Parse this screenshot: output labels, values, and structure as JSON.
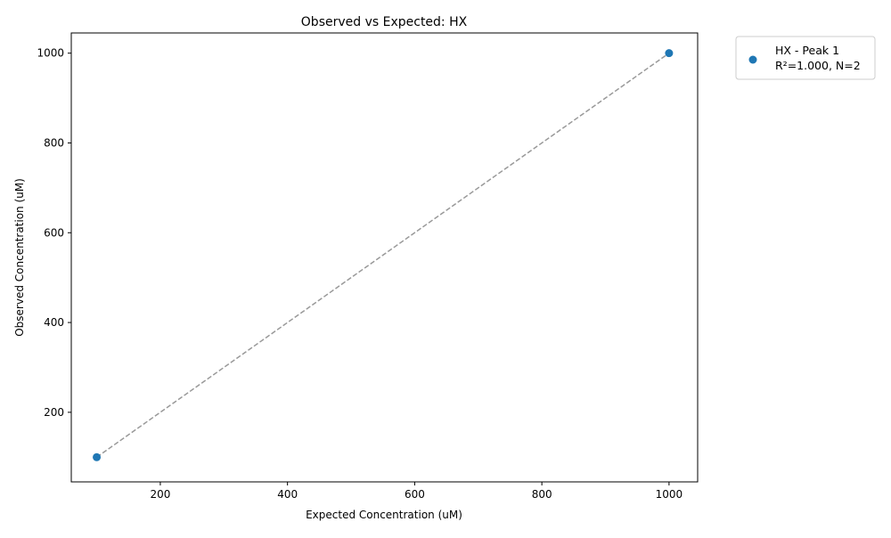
{
  "chart_data": {
    "type": "scatter",
    "title": "Observed vs Expected: HX",
    "xlabel": "Expected Concentration (uM)",
    "ylabel": "Observed Concentration (uM)",
    "xlim": [
      60,
      1045
    ],
    "ylim": [
      45,
      1045
    ],
    "xticks": [
      200,
      400,
      600,
      800,
      1000
    ],
    "yticks": [
      200,
      400,
      600,
      800,
      1000
    ],
    "grid": false,
    "legend_position": "outside-top-right",
    "series": [
      {
        "name": "HX - Peak 1",
        "legend_detail": "R²=1.000, N=2",
        "color": "#1f77b4",
        "x": [
          100,
          1000
        ],
        "y": [
          100,
          1000
        ]
      }
    ],
    "reference_line": {
      "x": [
        100,
        1000
      ],
      "y": [
        100,
        1000
      ],
      "color": "#999999",
      "style": "dashed"
    }
  }
}
